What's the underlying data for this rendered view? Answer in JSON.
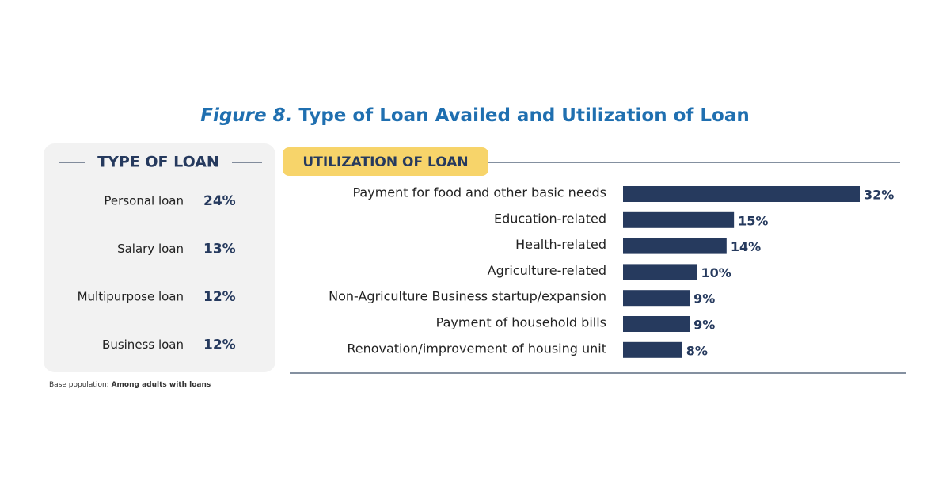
{
  "figure_label": "Figure 8.",
  "title": "Type of Loan Availed and Utilization of Loan",
  "type_of_loan": {
    "heading": "TYPE OF LOAN",
    "rows": [
      [
        "Personal loan",
        "24%"
      ],
      [
        "Salary loan",
        "13%"
      ],
      [
        "Multipurpose loan",
        "12%"
      ],
      [
        "Business loan",
        "12%"
      ]
    ]
  },
  "chart_data": {
    "type": "bar",
    "orientation": "horizontal",
    "title": "UTILIZATION OF LOAN",
    "categories": [
      "Payment for food and other basic needs",
      "Education-related",
      "Health-related",
      "Agriculture-related",
      "Non-Agriculture Business startup/expansion",
      "Payment of household bills",
      "Renovation/improvement of housing unit"
    ],
    "values": [
      32,
      15,
      14,
      10,
      9,
      9,
      8
    ],
    "value_labels": [
      "32%",
      "15%",
      "14%",
      "10%",
      "9%",
      "9%",
      "8%"
    ],
    "color": "#263a5e"
  },
  "footnote": {
    "prefix": "Base population:",
    "text": "Among adults with loans"
  }
}
